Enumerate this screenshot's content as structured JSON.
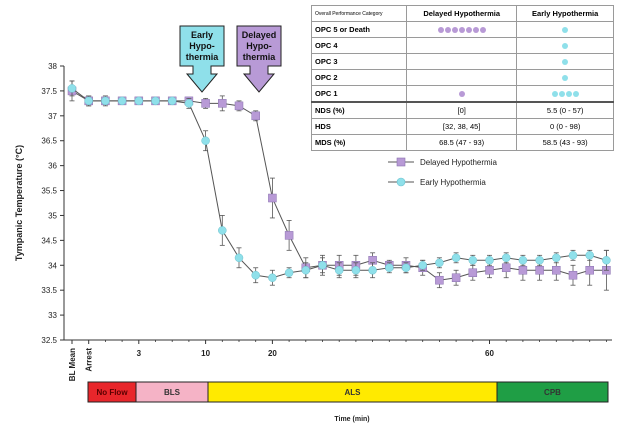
{
  "chart_data": {
    "type": "line",
    "ylabel": "Tympanic  Temperature (°C)",
    "xlabel": "Time (min)",
    "ylim": [
      32.5,
      38
    ],
    "y_ticks": [
      "32.5",
      "33",
      "33.5",
      "34",
      "34.5",
      "35",
      "35.5",
      "36",
      "36.5",
      "37",
      "37.5",
      "38"
    ],
    "x_tick_labels": [
      "BL Mean",
      "Arrest",
      "3",
      "10",
      "20",
      "60"
    ],
    "series": [
      {
        "name": "Delayed Hypothermia",
        "color": "#b89ad6",
        "marker": "square",
        "values": [
          37.5,
          37.3,
          37.3,
          37.3,
          37.3,
          37.3,
          37.3,
          37.3,
          37.25,
          37.25,
          37.2,
          37.0,
          35.35,
          34.6,
          33.95,
          34.0,
          34.0,
          34.0,
          34.1,
          34.0,
          34.0,
          33.95,
          33.7,
          33.75,
          33.85,
          33.9,
          33.95,
          33.9,
          33.9,
          33.9,
          33.8,
          33.9,
          33.9
        ],
        "errors": [
          0.2,
          0.1,
          0.1,
          0.05,
          0.05,
          0.05,
          0.05,
          0.05,
          0.1,
          0.15,
          0.1,
          0.1,
          0.4,
          0.3,
          0.2,
          0.2,
          0.2,
          0.2,
          0.15,
          0.1,
          0.15,
          0.15,
          0.15,
          0.15,
          0.15,
          0.15,
          0.2,
          0.2,
          0.2,
          0.2,
          0.2,
          0.3,
          0.4
        ]
      },
      {
        "name": "Early Hypothermia",
        "color": "#8fe0ea",
        "marker": "circle",
        "values": [
          37.55,
          37.3,
          37.3,
          37.3,
          37.3,
          37.3,
          37.3,
          37.25,
          36.5,
          34.7,
          34.15,
          33.8,
          33.75,
          33.85,
          33.9,
          34.0,
          33.9,
          33.9,
          33.9,
          33.95,
          33.95,
          34.0,
          34.05,
          34.15,
          34.1,
          34.1,
          34.15,
          34.1,
          34.1,
          34.15,
          34.2,
          34.2,
          34.1
        ],
        "errors": [
          0.15,
          0.1,
          0.05,
          0.05,
          0.05,
          0.05,
          0.05,
          0.1,
          0.2,
          0.3,
          0.2,
          0.15,
          0.15,
          0.1,
          0.15,
          0.15,
          0.15,
          0.15,
          0.15,
          0.1,
          0.1,
          0.1,
          0.1,
          0.1,
          0.1,
          0.1,
          0.1,
          0.1,
          0.1,
          0.1,
          0.1,
          0.1,
          0.2
        ]
      }
    ],
    "annotations": [
      {
        "text": "Early Hypo-thermia",
        "lines": [
          "Early",
          "Hypo-",
          "thermia"
        ],
        "color": "#8fe0ea"
      },
      {
        "text": "Delayed Hypo-thermia",
        "lines": [
          "Delayed",
          "Hypo-",
          "thermia"
        ],
        "color": "#b89ad6"
      }
    ],
    "phases": [
      {
        "label": "No Flow",
        "color": "#e8262b"
      },
      {
        "label": "BLS",
        "color": "#f5b3c6"
      },
      {
        "label": "ALS",
        "color": "#ffea00"
      },
      {
        "label": "CPB",
        "color": "#1f9e45"
      }
    ],
    "legend": [
      "Delayed Hypothermia",
      "Early Hypothermia"
    ]
  },
  "table": {
    "header": [
      "Overall Performance Category",
      "Delayed Hypothermia",
      "Early Hypothermia"
    ],
    "opc_rows": [
      {
        "label": "OPC 5 or Death",
        "delayed": 7,
        "early": 1
      },
      {
        "label": "OPC 4",
        "delayed": 0,
        "early": 1
      },
      {
        "label": "OPC 3",
        "delayed": 0,
        "early": 1
      },
      {
        "label": "OPC 2",
        "delayed": 0,
        "early": 1
      },
      {
        "label": "OPC 1",
        "delayed": 1,
        "early": 4
      }
    ],
    "stat_rows": [
      {
        "label": "NDS (%)",
        "delayed": "[0]",
        "early": "5.5 (0 - 57)"
      },
      {
        "label": "HDS",
        "delayed": "[32, 38, 45]",
        "early": "0 (0 - 98)"
      },
      {
        "label": "MDS (%)",
        "delayed": "68.5 (47 - 93)",
        "early": "58.5 (43 - 93)"
      }
    ]
  }
}
